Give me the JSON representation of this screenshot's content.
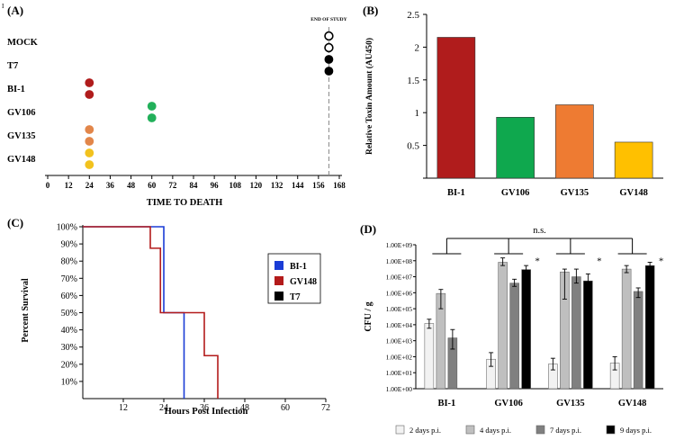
{
  "page_mark": "I",
  "chart_data": [
    {
      "panel": "(A)",
      "type": "scatter",
      "xlabel": "TIME TO DEATH",
      "xticks": [
        0,
        12,
        24,
        36,
        48,
        60,
        72,
        84,
        96,
        108,
        120,
        132,
        144,
        156,
        168
      ],
      "xlim": [
        0,
        168
      ],
      "annotation": "END OF STUDY",
      "end_of_study_x": 162,
      "groups": [
        {
          "name": "MOCK",
          "color": "#ffffff",
          "outline": true,
          "points": [
            162,
            162
          ]
        },
        {
          "name": "T7",
          "color": "#000000",
          "outline": false,
          "points": [
            162,
            162
          ]
        },
        {
          "name": "BI-1",
          "color": "#b01c1c",
          "outline": false,
          "points": [
            24,
            24
          ]
        },
        {
          "name": "GV106",
          "color": "#22b05a",
          "outline": false,
          "points": [
            60,
            60
          ]
        },
        {
          "name": "GV135",
          "color": "#e2864a",
          "outline": false,
          "points": [
            24,
            24
          ]
        },
        {
          "name": "GV148",
          "color": "#f2c21e",
          "outline": false,
          "points": [
            24,
            24
          ]
        }
      ]
    },
    {
      "panel": "(B)",
      "type": "bar",
      "ylabel": "Relative Toxin Amount (AU450)",
      "ylim": [
        0,
        2.5
      ],
      "yticks": [
        "0",
        "0.5",
        "1",
        "1.5",
        "2",
        "2.5"
      ],
      "categories": [
        "BI-1",
        "GV106",
        "GV135",
        "GV148"
      ],
      "values": [
        2.15,
        0.93,
        1.12,
        0.55
      ],
      "colors": [
        "#b01c1c",
        "#0fa84e",
        "#ee7b32",
        "#ffc000"
      ]
    },
    {
      "panel": "(C)",
      "type": "line",
      "ylabel": "Percent Survival",
      "xlabel": "Hours Post Infection",
      "xlim": [
        0,
        72
      ],
      "ylim": [
        0,
        100
      ],
      "xticks": [
        "12",
        "24",
        "36",
        "48",
        "60",
        "72"
      ],
      "yticks": [
        "10%",
        "20%",
        "30%",
        "40%",
        "50%",
        "60%",
        "70%",
        "80%",
        "90%",
        "100%"
      ],
      "series": [
        {
          "name": "BI-1",
          "color": "#1a3cd6",
          "steps": [
            [
              0,
              100
            ],
            [
              24,
              100
            ],
            [
              24,
              50
            ],
            [
              30,
              50
            ],
            [
              30,
              0
            ]
          ]
        },
        {
          "name": "GV148",
          "color": "#b31b1b",
          "steps": [
            [
              0,
              100
            ],
            [
              20,
              100
            ],
            [
              20,
              87.5
            ],
            [
              23,
              87.5
            ],
            [
              23,
              50
            ],
            [
              36,
              50
            ],
            [
              36,
              25
            ],
            [
              40,
              25
            ],
            [
              40,
              0
            ]
          ]
        },
        {
          "name": "T7",
          "color": "#000000",
          "steps": []
        }
      ]
    },
    {
      "panel": "(D)",
      "type": "bar",
      "scale": "log",
      "ylabel": "CFU / g",
      "yticks": [
        "1.00E+09",
        "1.00E+08",
        "1.00E+07",
        "1.00E+06",
        "1.00E+05",
        "1.00E+04",
        "1.00E+03",
        "1.00E+02",
        "1.00E+01",
        "1.00E+00"
      ],
      "categories": [
        "BI-1",
        "GV106",
        "GV135",
        "GV148"
      ],
      "series": [
        {
          "name": "2 days p.i.",
          "color": "#f2f2f2",
          "values": [
            12000,
            70,
            35,
            40
          ],
          "err_low": [
            6000,
            25,
            15,
            15
          ],
          "err_high": [
            22000,
            180,
            80,
            100
          ]
        },
        {
          "name": "4 days p.i.",
          "color": "#bfbfbf",
          "values": [
            900000,
            80000000,
            20000000,
            30000000
          ],
          "err_low": [
            100000,
            50000000,
            400000,
            18000000
          ],
          "err_high": [
            1600000,
            150000000,
            30000000,
            50000000
          ]
        },
        {
          "name": "7 days p.i.",
          "color": "#808080",
          "values": [
            1500,
            4000000,
            10000000,
            1200000
          ],
          "err_low": [
            300,
            2500000,
            4000000,
            500000
          ],
          "err_high": [
            5000,
            7000000,
            30000000,
            2000000
          ]
        },
        {
          "name": "9 days p.i.",
          "color": "#000000",
          "values": [
            null,
            28000000,
            5500000,
            50000000
          ],
          "err_low": [
            null,
            10000000,
            1500000,
            20000000
          ],
          "err_high": [
            null,
            50000000,
            15000000,
            80000000
          ]
        }
      ],
      "significance": "n.s.",
      "markers": [
        "",
        "*",
        "*",
        "*"
      ]
    }
  ]
}
